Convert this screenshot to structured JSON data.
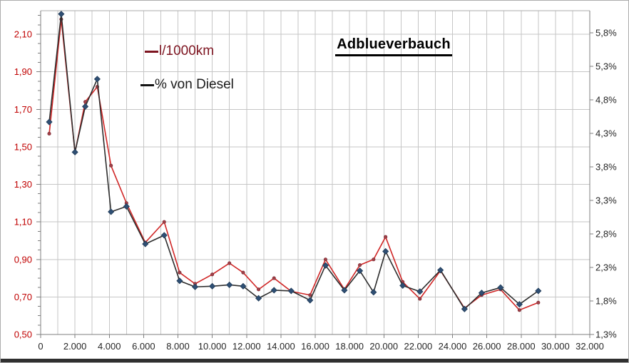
{
  "chart": {
    "title": "Adblueverbauch",
    "legend": [
      {
        "label": "l/1000km",
        "color": "#7D1420"
      },
      {
        "label": "% von Diesel",
        "color": "#1a1a1a"
      }
    ]
  },
  "chart_data": {
    "type": "line",
    "title": "Adblueverbauch",
    "legend_position": "inside-top-left",
    "grid": true,
    "x": [
      500,
      1200,
      2000,
      2600,
      3300,
      4100,
      5000,
      6100,
      7200,
      8100,
      9000,
      10000,
      11000,
      11800,
      12700,
      13600,
      14600,
      15700,
      16600,
      17700,
      18600,
      19400,
      20100,
      21100,
      22100,
      23300,
      24700,
      25700,
      26800,
      27900,
      29000
    ],
    "series": [
      {
        "name": "l/1000km",
        "axis": "left",
        "color": "#D02626",
        "marker": "circle",
        "marker_color": "#A04048",
        "values": [
          1.57,
          2.18,
          1.47,
          1.74,
          1.82,
          1.4,
          1.2,
          0.99,
          1.1,
          0.83,
          0.77,
          0.82,
          0.88,
          0.83,
          0.74,
          0.8,
          0.73,
          0.71,
          0.9,
          0.74,
          0.87,
          0.9,
          1.02,
          0.78,
          0.69,
          0.84,
          0.64,
          0.71,
          0.74,
          0.63,
          0.67
        ]
      },
      {
        "name": "% von Diesel",
        "axis": "right",
        "color": "#2D2D2D",
        "marker": "diamond",
        "marker_color": "#2F4F74",
        "values": [
          4.47,
          6.08,
          4.02,
          4.7,
          5.11,
          3.13,
          3.21,
          2.65,
          2.78,
          2.1,
          2.01,
          2.02,
          2.04,
          2.02,
          1.84,
          1.96,
          1.95,
          1.81,
          2.33,
          1.96,
          2.25,
          1.93,
          2.54,
          2.03,
          1.94,
          2.26,
          1.68,
          1.92,
          2.0,
          1.75,
          1.95
        ]
      }
    ],
    "x_axis": {
      "min": 0,
      "max": 32000,
      "grid_interval": 1000,
      "label_interval": 2000,
      "tick_labels": [
        "0",
        "2.000",
        "4.000",
        "6.000",
        "8.000",
        "10.000",
        "12.000",
        "14.000",
        "16.000",
        "18.000",
        "20.000",
        "22.000",
        "24.000",
        "26.000",
        "28.000",
        "30.000",
        "32.000"
      ],
      "label_color": "#262626"
    },
    "left_axis": {
      "min": 0.5,
      "step": 0.2,
      "minor_step": 0.05,
      "tick_labels": [
        "0,50",
        "0,70",
        "0,90",
        "1,10",
        "1,30",
        "1,50",
        "1,70",
        "1,90",
        "2,10"
      ],
      "label_color": "#C00000"
    },
    "right_axis": {
      "min": 1.3,
      "step": 0.5,
      "tick_labels": [
        "1,3%",
        "1,8%",
        "2,3%",
        "2,8%",
        "3,3%",
        "3,8%",
        "4,3%",
        "4,8%",
        "5,3%",
        "5,8%"
      ],
      "label_color": "#262626"
    },
    "grid_color": "#C6C6C6",
    "axis_color": "#7F7F7F"
  }
}
